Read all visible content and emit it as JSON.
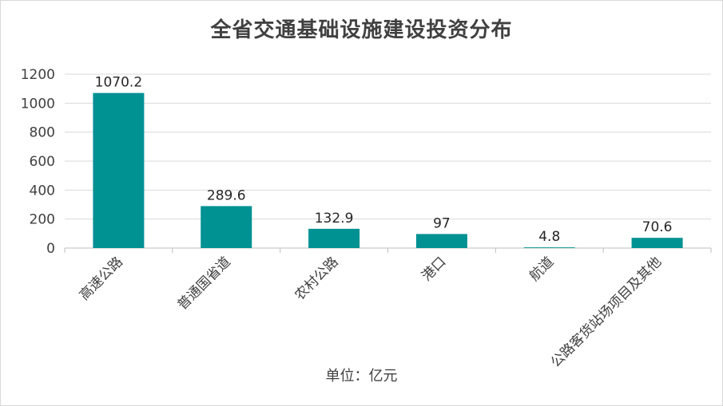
{
  "chart_data": {
    "type": "bar",
    "title": "全省交通基础设施建设投资分布",
    "xlabel": "单位：亿元",
    "ylabel": "",
    "categories": [
      "高速公路",
      "普通国省道",
      "农村公路",
      "港口",
      "航道",
      "公路客货站场项目及其他"
    ],
    "values": [
      1070.2,
      289.6,
      132.9,
      97,
      4.8,
      70.6
    ],
    "data_labels": [
      "1070.2",
      "289.6",
      "132.9",
      "97",
      "4.8",
      "70.6"
    ],
    "ylim": [
      0,
      1200
    ],
    "yticks": [
      "0",
      "200",
      "400",
      "600",
      "800",
      "1000",
      "1200"
    ],
    "grid": true,
    "legend": "none",
    "bar_color": "#009193"
  }
}
